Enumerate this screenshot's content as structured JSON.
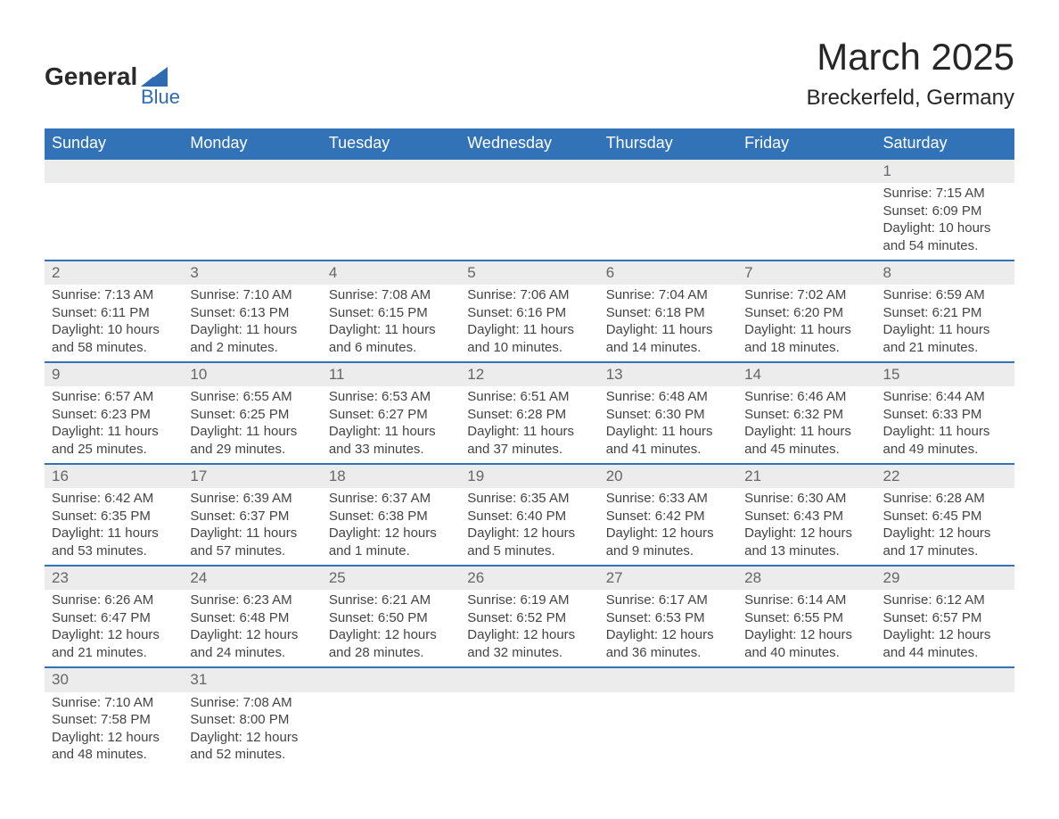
{
  "logo": {
    "text_top": "General",
    "text_bottom": "Blue",
    "wedge_color": "#2e6bb0"
  },
  "header": {
    "month_title": "March 2025",
    "location": "Breckerfeld, Germany"
  },
  "style": {
    "header_bg": "#3273b8",
    "header_text": "#ffffff",
    "daynum_bg": "#ececec",
    "border_color": "#3273b8",
    "body_text": "#444444",
    "title_text": "#262626"
  },
  "days_of_week": [
    "Sunday",
    "Monday",
    "Tuesday",
    "Wednesday",
    "Thursday",
    "Friday",
    "Saturday"
  ],
  "weeks": [
    [
      null,
      null,
      null,
      null,
      null,
      null,
      {
        "num": "1",
        "sunrise": "Sunrise: 7:15 AM",
        "sunset": "Sunset: 6:09 PM",
        "daylight": "Daylight: 10 hours and 54 minutes."
      }
    ],
    [
      {
        "num": "2",
        "sunrise": "Sunrise: 7:13 AM",
        "sunset": "Sunset: 6:11 PM",
        "daylight": "Daylight: 10 hours and 58 minutes."
      },
      {
        "num": "3",
        "sunrise": "Sunrise: 7:10 AM",
        "sunset": "Sunset: 6:13 PM",
        "daylight": "Daylight: 11 hours and 2 minutes."
      },
      {
        "num": "4",
        "sunrise": "Sunrise: 7:08 AM",
        "sunset": "Sunset: 6:15 PM",
        "daylight": "Daylight: 11 hours and 6 minutes."
      },
      {
        "num": "5",
        "sunrise": "Sunrise: 7:06 AM",
        "sunset": "Sunset: 6:16 PM",
        "daylight": "Daylight: 11 hours and 10 minutes."
      },
      {
        "num": "6",
        "sunrise": "Sunrise: 7:04 AM",
        "sunset": "Sunset: 6:18 PM",
        "daylight": "Daylight: 11 hours and 14 minutes."
      },
      {
        "num": "7",
        "sunrise": "Sunrise: 7:02 AM",
        "sunset": "Sunset: 6:20 PM",
        "daylight": "Daylight: 11 hours and 18 minutes."
      },
      {
        "num": "8",
        "sunrise": "Sunrise: 6:59 AM",
        "sunset": "Sunset: 6:21 PM",
        "daylight": "Daylight: 11 hours and 21 minutes."
      }
    ],
    [
      {
        "num": "9",
        "sunrise": "Sunrise: 6:57 AM",
        "sunset": "Sunset: 6:23 PM",
        "daylight": "Daylight: 11 hours and 25 minutes."
      },
      {
        "num": "10",
        "sunrise": "Sunrise: 6:55 AM",
        "sunset": "Sunset: 6:25 PM",
        "daylight": "Daylight: 11 hours and 29 minutes."
      },
      {
        "num": "11",
        "sunrise": "Sunrise: 6:53 AM",
        "sunset": "Sunset: 6:27 PM",
        "daylight": "Daylight: 11 hours and 33 minutes."
      },
      {
        "num": "12",
        "sunrise": "Sunrise: 6:51 AM",
        "sunset": "Sunset: 6:28 PM",
        "daylight": "Daylight: 11 hours and 37 minutes."
      },
      {
        "num": "13",
        "sunrise": "Sunrise: 6:48 AM",
        "sunset": "Sunset: 6:30 PM",
        "daylight": "Daylight: 11 hours and 41 minutes."
      },
      {
        "num": "14",
        "sunrise": "Sunrise: 6:46 AM",
        "sunset": "Sunset: 6:32 PM",
        "daylight": "Daylight: 11 hours and 45 minutes."
      },
      {
        "num": "15",
        "sunrise": "Sunrise: 6:44 AM",
        "sunset": "Sunset: 6:33 PM",
        "daylight": "Daylight: 11 hours and 49 minutes."
      }
    ],
    [
      {
        "num": "16",
        "sunrise": "Sunrise: 6:42 AM",
        "sunset": "Sunset: 6:35 PM",
        "daylight": "Daylight: 11 hours and 53 minutes."
      },
      {
        "num": "17",
        "sunrise": "Sunrise: 6:39 AM",
        "sunset": "Sunset: 6:37 PM",
        "daylight": "Daylight: 11 hours and 57 minutes."
      },
      {
        "num": "18",
        "sunrise": "Sunrise: 6:37 AM",
        "sunset": "Sunset: 6:38 PM",
        "daylight": "Daylight: 12 hours and 1 minute."
      },
      {
        "num": "19",
        "sunrise": "Sunrise: 6:35 AM",
        "sunset": "Sunset: 6:40 PM",
        "daylight": "Daylight: 12 hours and 5 minutes."
      },
      {
        "num": "20",
        "sunrise": "Sunrise: 6:33 AM",
        "sunset": "Sunset: 6:42 PM",
        "daylight": "Daylight: 12 hours and 9 minutes."
      },
      {
        "num": "21",
        "sunrise": "Sunrise: 6:30 AM",
        "sunset": "Sunset: 6:43 PM",
        "daylight": "Daylight: 12 hours and 13 minutes."
      },
      {
        "num": "22",
        "sunrise": "Sunrise: 6:28 AM",
        "sunset": "Sunset: 6:45 PM",
        "daylight": "Daylight: 12 hours and 17 minutes."
      }
    ],
    [
      {
        "num": "23",
        "sunrise": "Sunrise: 6:26 AM",
        "sunset": "Sunset: 6:47 PM",
        "daylight": "Daylight: 12 hours and 21 minutes."
      },
      {
        "num": "24",
        "sunrise": "Sunrise: 6:23 AM",
        "sunset": "Sunset: 6:48 PM",
        "daylight": "Daylight: 12 hours and 24 minutes."
      },
      {
        "num": "25",
        "sunrise": "Sunrise: 6:21 AM",
        "sunset": "Sunset: 6:50 PM",
        "daylight": "Daylight: 12 hours and 28 minutes."
      },
      {
        "num": "26",
        "sunrise": "Sunrise: 6:19 AM",
        "sunset": "Sunset: 6:52 PM",
        "daylight": "Daylight: 12 hours and 32 minutes."
      },
      {
        "num": "27",
        "sunrise": "Sunrise: 6:17 AM",
        "sunset": "Sunset: 6:53 PM",
        "daylight": "Daylight: 12 hours and 36 minutes."
      },
      {
        "num": "28",
        "sunrise": "Sunrise: 6:14 AM",
        "sunset": "Sunset: 6:55 PM",
        "daylight": "Daylight: 12 hours and 40 minutes."
      },
      {
        "num": "29",
        "sunrise": "Sunrise: 6:12 AM",
        "sunset": "Sunset: 6:57 PM",
        "daylight": "Daylight: 12 hours and 44 minutes."
      }
    ],
    [
      {
        "num": "30",
        "sunrise": "Sunrise: 7:10 AM",
        "sunset": "Sunset: 7:58 PM",
        "daylight": "Daylight: 12 hours and 48 minutes."
      },
      {
        "num": "31",
        "sunrise": "Sunrise: 7:08 AM",
        "sunset": "Sunset: 8:00 PM",
        "daylight": "Daylight: 12 hours and 52 minutes."
      },
      null,
      null,
      null,
      null,
      null
    ]
  ]
}
